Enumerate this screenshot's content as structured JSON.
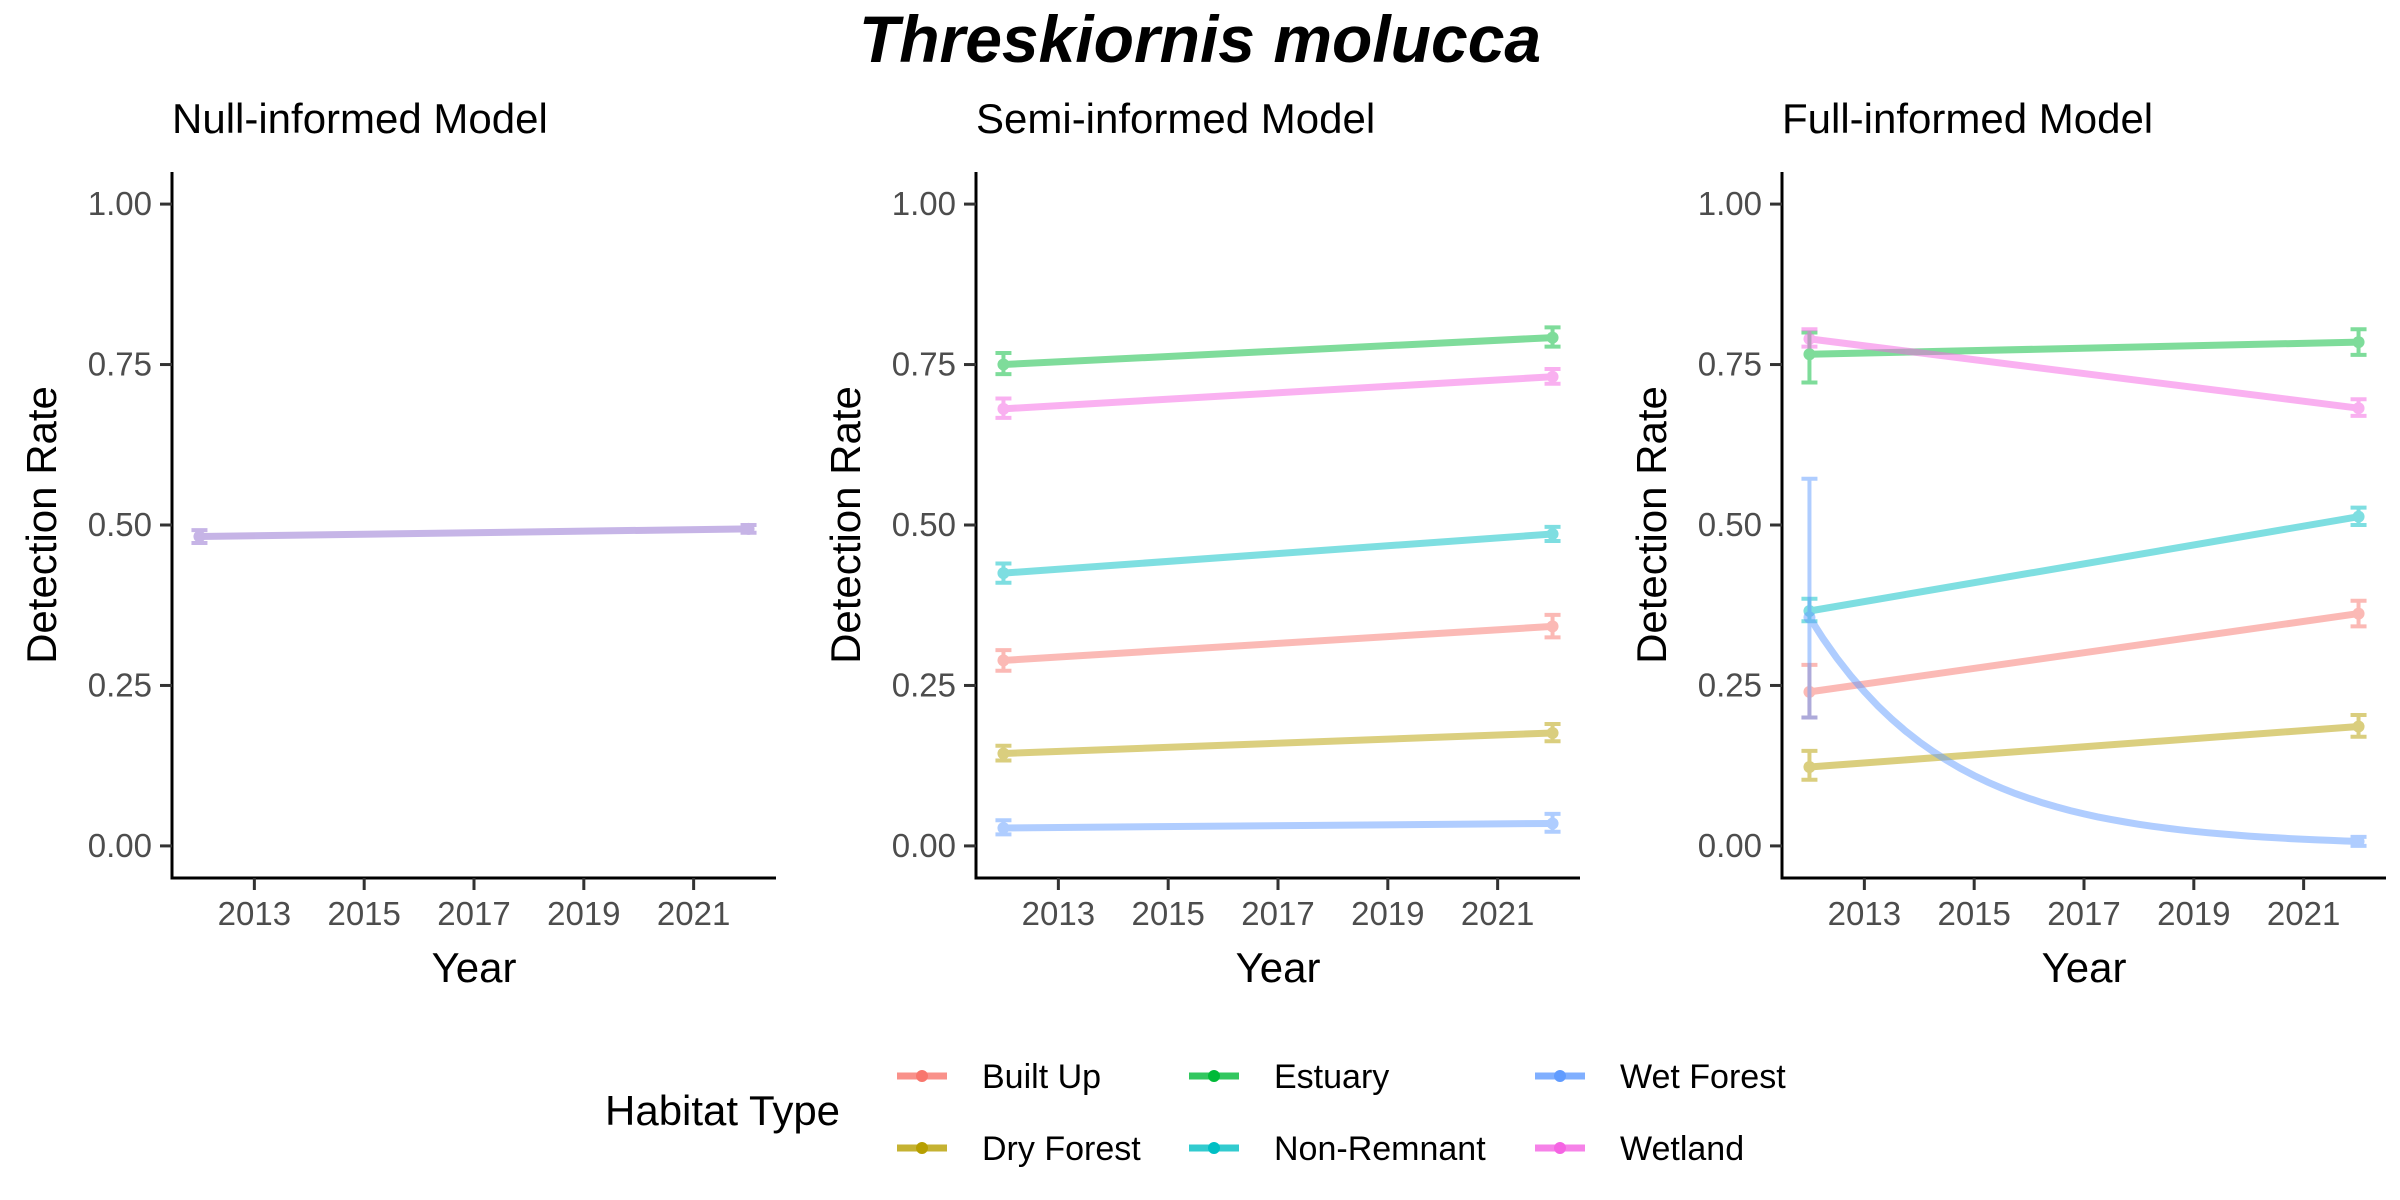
{
  "title": "Threskiornis molucca",
  "legend": {
    "title": "Habitat Type",
    "entries": [
      {
        "name": "Built Up",
        "color": "#F8766D"
      },
      {
        "name": "Estuary",
        "color": "#00BA38"
      },
      {
        "name": "Wet Forest",
        "color": "#619CFF"
      },
      {
        "name": "Dry Forest",
        "color": "#B79F00"
      },
      {
        "name": "Non-Remnant",
        "color": "#00BFC4"
      },
      {
        "name": "Wetland",
        "color": "#F564E3"
      }
    ]
  },
  "chart_data": [
    {
      "type": "line",
      "title": "Null-informed Model",
      "xlabel": "Year",
      "ylabel": "Detection Rate",
      "xlim": [
        2011.5,
        2022.5
      ],
      "ylim": [
        -0.05,
        1.05
      ],
      "xticks": [
        "2013",
        "2015",
        "2017",
        "2019",
        "2021"
      ],
      "yticks": [
        "0.00",
        "0.25",
        "0.50",
        "0.75",
        "1.00"
      ],
      "series": [
        {
          "habitat": "all",
          "color": "#8E6BCF",
          "x": [
            2012,
            2022
          ],
          "y": [
            0.482,
            0.494
          ],
          "lower": [
            0.472,
            0.488
          ],
          "upper": [
            0.492,
            0.5
          ]
        }
      ]
    },
    {
      "type": "line",
      "title": "Semi-informed Model",
      "xlabel": "Year",
      "ylabel": "Detection Rate",
      "xlim": [
        2011.5,
        2022.5
      ],
      "ylim": [
        -0.05,
        1.05
      ],
      "xticks": [
        "2013",
        "2015",
        "2017",
        "2019",
        "2021"
      ],
      "yticks": [
        "0.00",
        "0.25",
        "0.50",
        "0.75",
        "1.00"
      ],
      "series": [
        {
          "habitat": "Built Up",
          "color": "#F8766D",
          "x": [
            2012,
            2022
          ],
          "y": [
            0.289,
            0.342
          ],
          "lower": [
            0.273,
            0.325
          ],
          "upper": [
            0.305,
            0.36
          ]
        },
        {
          "habitat": "Dry Forest",
          "color": "#B79F00",
          "x": [
            2012,
            2022
          ],
          "y": [
            0.144,
            0.176
          ],
          "lower": [
            0.133,
            0.163
          ],
          "upper": [
            0.156,
            0.19
          ]
        },
        {
          "habitat": "Estuary",
          "color": "#00BA38",
          "x": [
            2012,
            2022
          ],
          "y": [
            0.75,
            0.792
          ],
          "lower": [
            0.735,
            0.778
          ],
          "upper": [
            0.768,
            0.808
          ]
        },
        {
          "habitat": "Non-Remnant",
          "color": "#00BFC4",
          "x": [
            2012,
            2022
          ],
          "y": [
            0.425,
            0.486
          ],
          "lower": [
            0.41,
            0.475
          ],
          "upper": [
            0.44,
            0.497
          ]
        },
        {
          "habitat": "Wet Forest",
          "color": "#619CFF",
          "x": [
            2012,
            2022
          ],
          "y": [
            0.028,
            0.035
          ],
          "lower": [
            0.018,
            0.022
          ],
          "upper": [
            0.04,
            0.05
          ]
        },
        {
          "habitat": "Wetland",
          "color": "#F564E3",
          "x": [
            2012,
            2022
          ],
          "y": [
            0.681,
            0.731
          ],
          "lower": [
            0.667,
            0.72
          ],
          "upper": [
            0.697,
            0.743
          ]
        }
      ]
    },
    {
      "type": "line",
      "title": "Full-informed Model",
      "xlabel": "Year",
      "ylabel": "Detection Rate",
      "xlim": [
        2011.5,
        2022.5
      ],
      "ylim": [
        -0.05,
        1.05
      ],
      "xticks": [
        "2013",
        "2015",
        "2017",
        "2019",
        "2021"
      ],
      "yticks": [
        "0.00",
        "0.25",
        "0.50",
        "0.75",
        "1.00"
      ],
      "series": [
        {
          "habitat": "Built Up",
          "color": "#F8766D",
          "x": [
            2012,
            2022
          ],
          "y": [
            0.24,
            0.362
          ],
          "lower": [
            0.2,
            0.342
          ],
          "upper": [
            0.282,
            0.382
          ]
        },
        {
          "habitat": "Dry Forest",
          "color": "#B79F00",
          "x": [
            2012,
            2022
          ],
          "y": [
            0.123,
            0.186
          ],
          "lower": [
            0.103,
            0.17
          ],
          "upper": [
            0.148,
            0.204
          ]
        },
        {
          "habitat": "Estuary",
          "color": "#00BA38",
          "x": [
            2012,
            2022
          ],
          "y": [
            0.766,
            0.785
          ],
          "lower": [
            0.722,
            0.765
          ],
          "upper": [
            0.8,
            0.805
          ]
        },
        {
          "habitat": "Non-Remnant",
          "color": "#00BFC4",
          "x": [
            2012,
            2022
          ],
          "y": [
            0.366,
            0.513
          ],
          "lower": [
            0.35,
            0.5
          ],
          "upper": [
            0.385,
            0.527
          ]
        },
        {
          "habitat": "Wet Forest",
          "color": "#619CFF",
          "x": [
            2012,
            2022
          ],
          "y": [
            0.356,
            0.007
          ],
          "lower": [
            0.2,
            0.0
          ],
          "upper": [
            0.572,
            0.014
          ],
          "curve": "exponential"
        },
        {
          "habitat": "Wetland",
          "color": "#F564E3",
          "x": [
            2012,
            2022
          ],
          "y": [
            0.79,
            0.682
          ],
          "lower": [
            0.778,
            0.67
          ],
          "upper": [
            0.805,
            0.696
          ]
        }
      ]
    }
  ]
}
